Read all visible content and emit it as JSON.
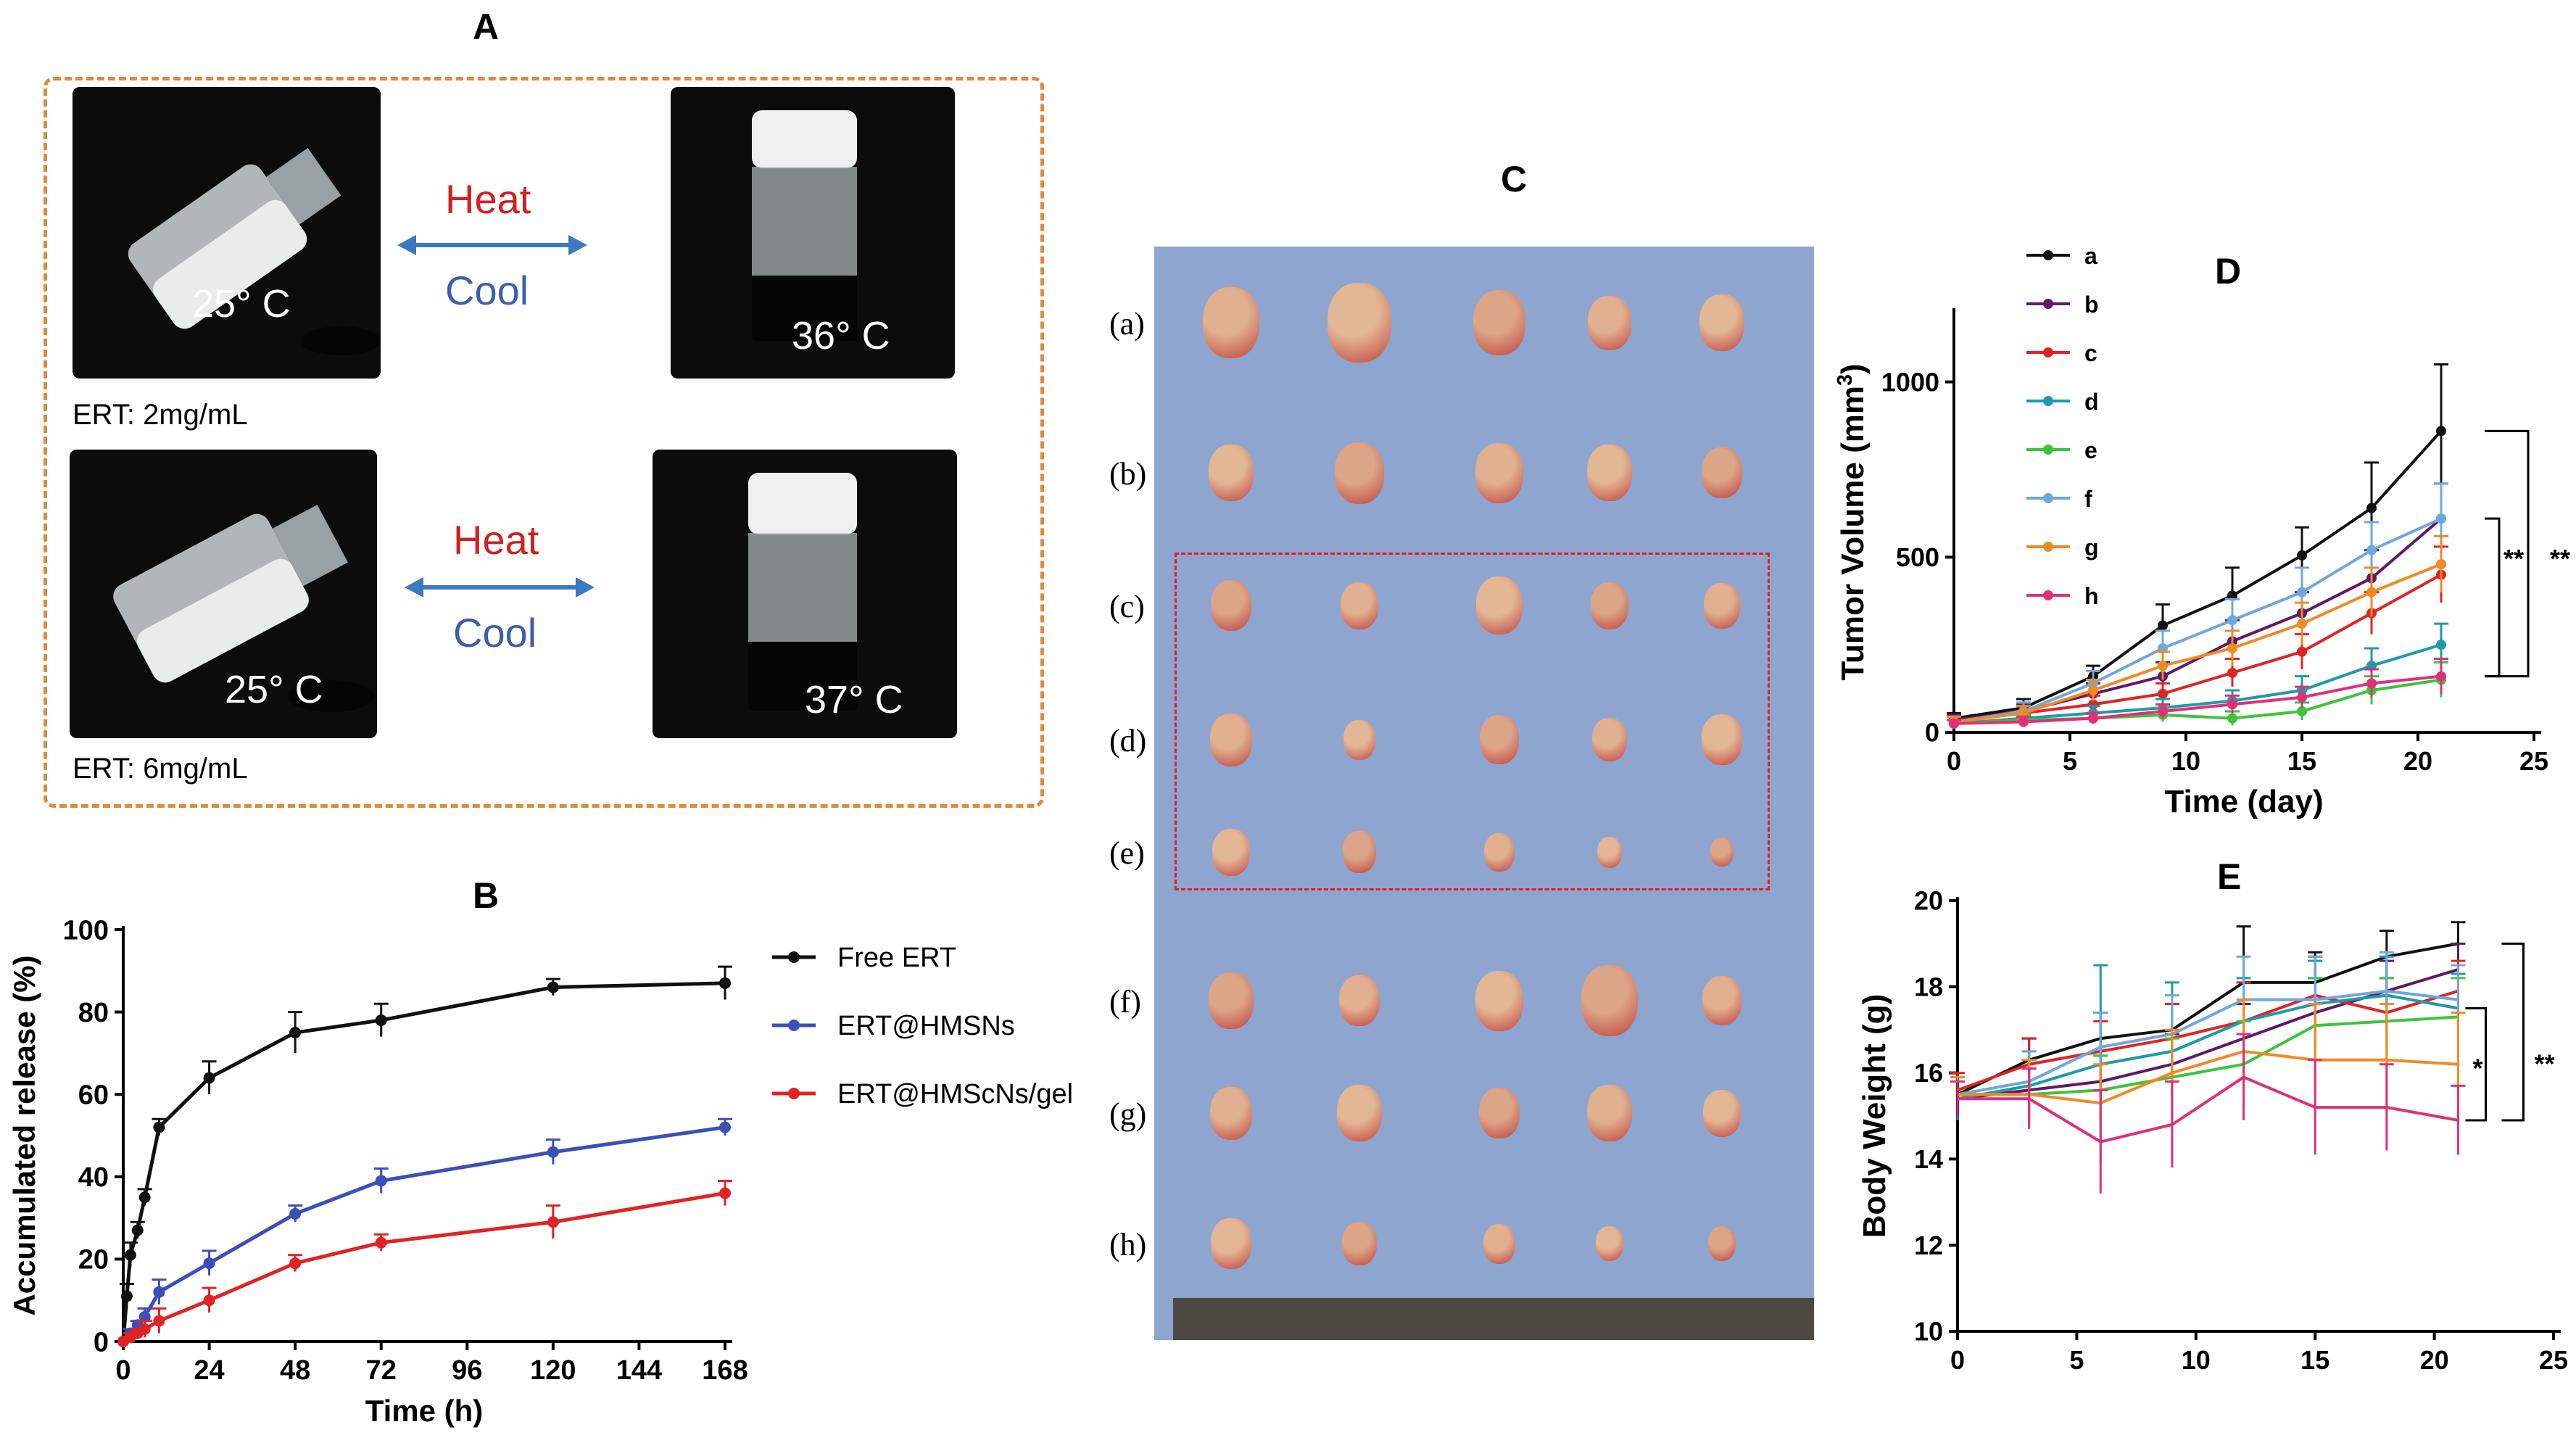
{
  "panel_a": {
    "letter": "A",
    "heat_label": "Heat",
    "cool_label": "Cool",
    "rows": [
      {
        "concentration": "ERT: 2mg/mL",
        "cold_temp": "25° C",
        "warm_temp": "36° C"
      },
      {
        "concentration": "ERT: 6mg/mL",
        "cold_temp": "25° C",
        "warm_temp": "37° C"
      }
    ]
  },
  "panel_c": {
    "letter": "C",
    "row_labels": [
      "(a)",
      "(b)",
      "(c)",
      "(d)",
      "(e)",
      "(f)",
      "(g)",
      "(h)"
    ]
  },
  "colors": {
    "free_ert": "#111111",
    "hmsns": "#3b4fb8",
    "hmscns_gel": "#e02424",
    "group_a": "#111111",
    "group_b": "#5e1a66",
    "group_c": "#e02424",
    "group_d": "#1f9aa8",
    "group_e": "#3cc43c",
    "group_f": "#6fa8dc",
    "group_g": "#f08a24",
    "group_h": "#e0307a",
    "box_orange": "#e08a3a",
    "box_red": "#e02020",
    "board_blue": "#8ea5cf"
  },
  "chart_data": [
    {
      "id": "B",
      "letter": "B",
      "type": "line",
      "xlabel": "Time (h)",
      "ylabel": "Accumulated release (%)",
      "xlim": [
        0,
        168
      ],
      "ylim": [
        0,
        100
      ],
      "xticks": [
        0,
        24,
        48,
        72,
        96,
        120,
        144,
        168
      ],
      "yticks": [
        0,
        20,
        40,
        60,
        80,
        100
      ],
      "series": [
        {
          "name": "Free ERT",
          "color_key": "free_ert",
          "x": [
            0,
            1,
            2,
            4,
            6,
            10,
            24,
            48,
            72,
            120,
            168
          ],
          "y": [
            0,
            11,
            21,
            27,
            35,
            52,
            64,
            75,
            78,
            86,
            87
          ],
          "err": [
            0,
            3,
            3,
            2,
            2,
            2,
            4,
            5,
            4,
            2,
            4
          ]
        },
        {
          "name": "ERT@HMSNs",
          "color_key": "hmsns",
          "x": [
            0,
            2,
            4,
            6,
            10,
            24,
            48,
            72,
            120,
            168
          ],
          "y": [
            0,
            2,
            4,
            6,
            12,
            19,
            31,
            39,
            46,
            52
          ],
          "err": [
            0,
            1,
            1,
            2,
            3,
            3,
            2,
            3,
            3,
            2
          ]
        },
        {
          "name": "ERT@HMScNs/gel",
          "color_key": "hmscns_gel",
          "x": [
            0,
            2,
            4,
            6,
            10,
            24,
            48,
            72,
            120,
            168
          ],
          "y": [
            0,
            1,
            2,
            3,
            5,
            10,
            19,
            24,
            29,
            36
          ],
          "err": [
            0,
            1,
            1,
            2,
            3,
            3,
            2,
            2,
            4,
            3
          ]
        }
      ]
    },
    {
      "id": "D",
      "letter": "D",
      "type": "line",
      "xlabel": "Time (day)",
      "ylabel": "Tumor Volume (mm",
      "ylabel_sup": "3",
      "ylabel_close": ")",
      "xlim": [
        0,
        25
      ],
      "ylim": [
        0,
        1200
      ],
      "xticks": [
        0,
        5,
        10,
        15,
        20,
        25
      ],
      "yticks": [
        0,
        500,
        1000
      ],
      "significance": [
        "**",
        "**"
      ],
      "x": [
        0,
        3,
        6,
        9,
        12,
        15,
        18,
        21
      ],
      "series": [
        {
          "name": "a",
          "color_key": "group_a",
          "y": [
            40,
            70,
            160,
            305,
            390,
            505,
            640,
            860
          ],
          "err": [
            15,
            25,
            30,
            60,
            80,
            80,
            130,
            190
          ]
        },
        {
          "name": "b",
          "color_key": "group_b",
          "y": [
            35,
            60,
            110,
            160,
            260,
            340,
            440,
            610
          ],
          "err": [
            15,
            20,
            30,
            40,
            60,
            60,
            80,
            100
          ]
        },
        {
          "name": "c",
          "color_key": "group_c",
          "y": [
            30,
            55,
            80,
            110,
            170,
            230,
            340,
            450
          ],
          "err": [
            15,
            20,
            25,
            30,
            40,
            50,
            60,
            80
          ]
        },
        {
          "name": "d",
          "color_key": "group_d",
          "y": [
            25,
            40,
            55,
            70,
            90,
            120,
            190,
            250
          ],
          "err": [
            10,
            15,
            20,
            25,
            30,
            40,
            50,
            60
          ]
        },
        {
          "name": "e",
          "color_key": "group_e",
          "y": [
            25,
            35,
            40,
            50,
            40,
            60,
            120,
            150
          ],
          "err": [
            10,
            15,
            15,
            20,
            20,
            25,
            40,
            50
          ]
        },
        {
          "name": "f",
          "color_key": "group_f",
          "y": [
            30,
            60,
            140,
            240,
            320,
            400,
            520,
            610
          ],
          "err": [
            15,
            25,
            35,
            50,
            60,
            70,
            80,
            100
          ]
        },
        {
          "name": "g",
          "color_key": "group_g",
          "y": [
            30,
            55,
            120,
            190,
            240,
            310,
            400,
            480
          ],
          "err": [
            15,
            20,
            30,
            40,
            50,
            60,
            70,
            80
          ]
        },
        {
          "name": "h",
          "color_key": "group_h",
          "y": [
            25,
            30,
            40,
            60,
            80,
            100,
            140,
            160
          ],
          "err": [
            10,
            15,
            15,
            20,
            25,
            30,
            40,
            50
          ]
        }
      ]
    },
    {
      "id": "E",
      "letter": "E",
      "type": "line",
      "xlabel": "",
      "ylabel": "Body Weight (g)",
      "xlim": [
        0,
        25
      ],
      "ylim": [
        10,
        20
      ],
      "xticks": [
        0,
        5,
        10,
        15,
        20,
        25
      ],
      "yticks": [
        10,
        12,
        14,
        16,
        18,
        20
      ],
      "significance": [
        "*",
        "**"
      ],
      "x": [
        0,
        3,
        6,
        9,
        12,
        15,
        18,
        21
      ],
      "series": [
        {
          "name": "a",
          "color_key": "group_a",
          "y": [
            15.5,
            16.3,
            16.8,
            17.0,
            18.1,
            18.1,
            18.7,
            19.0
          ],
          "err": [
            0.4,
            0.5,
            0.6,
            0.6,
            1.3,
            0.7,
            0.6,
            0.5
          ]
        },
        {
          "name": "b",
          "color_key": "group_b",
          "y": [
            15.4,
            15.6,
            15.8,
            16.2,
            16.8,
            17.4,
            17.9,
            18.4
          ],
          "err": [
            0.4,
            0.5,
            0.6,
            0.7,
            0.8,
            0.8,
            0.7,
            0.6
          ]
        },
        {
          "name": "c",
          "color_key": "group_c",
          "y": [
            15.6,
            16.2,
            16.5,
            16.8,
            17.2,
            17.8,
            17.4,
            17.9
          ],
          "err": [
            0.4,
            0.6,
            0.7,
            0.8,
            0.9,
            0.9,
            0.8,
            0.7
          ]
        },
        {
          "name": "d",
          "color_key": "group_d",
          "y": [
            15.4,
            15.7,
            16.2,
            16.5,
            17.2,
            17.6,
            17.8,
            17.5
          ],
          "err": [
            0.5,
            0.8,
            2.3,
            1.6,
            1.0,
            1.0,
            0.9,
            0.8
          ]
        },
        {
          "name": "e",
          "color_key": "group_e",
          "y": [
            15.5,
            15.5,
            15.6,
            15.9,
            16.2,
            17.1,
            17.2,
            17.3
          ],
          "err": [
            0.4,
            0.6,
            0.8,
            0.9,
            1.0,
            1.1,
            1.0,
            0.9
          ]
        },
        {
          "name": "f",
          "color_key": "group_f",
          "y": [
            15.5,
            15.8,
            16.6,
            16.9,
            17.7,
            17.7,
            17.9,
            17.7
          ],
          "err": [
            0.4,
            0.7,
            0.8,
            0.9,
            1.0,
            1.0,
            0.9,
            0.8
          ]
        },
        {
          "name": "g",
          "color_key": "group_g",
          "y": [
            15.5,
            15.5,
            15.3,
            16.0,
            16.5,
            16.3,
            16.3,
            16.2
          ],
          "err": [
            0.4,
            0.8,
            0.9,
            1.0,
            1.2,
            1.3,
            1.3,
            1.2
          ]
        },
        {
          "name": "h",
          "color_key": "group_h",
          "y": [
            15.4,
            15.4,
            14.4,
            14.8,
            15.9,
            15.2,
            15.2,
            14.9
          ],
          "err": [
            0.4,
            0.7,
            1.2,
            1.0,
            1.0,
            1.1,
            1.0,
            0.8
          ]
        }
      ]
    }
  ]
}
